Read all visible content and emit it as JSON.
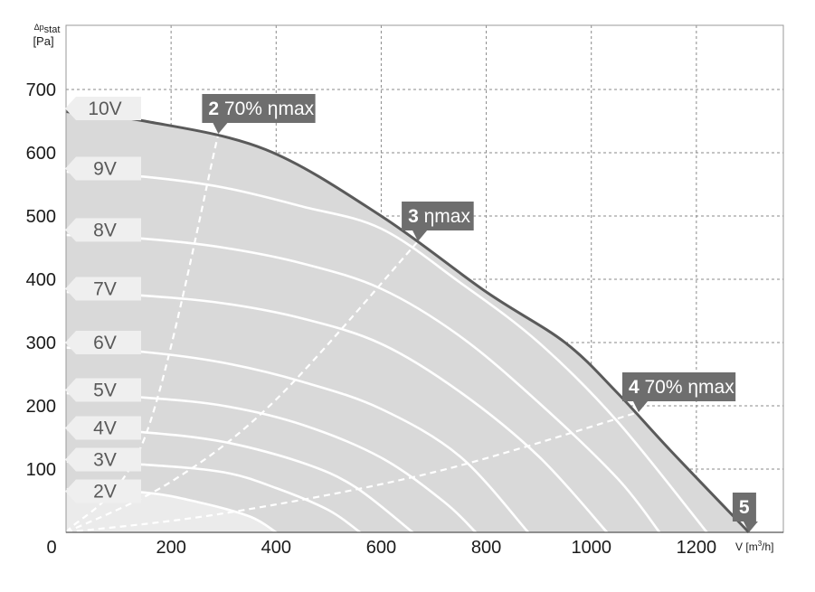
{
  "chart_data": {
    "type": "line",
    "title": "",
    "ylabel": {
      "main": "Δp",
      "sub": "stat",
      "unit": "[Pa]"
    },
    "xlabel": {
      "main": "V",
      "unit_pre": "[m",
      "unit_sup": "3",
      "unit_post": "/h]"
    },
    "xlim": [
      0,
      1400
    ],
    "ylim": [
      0,
      700
    ],
    "x_ticks": [
      {
        "value": 0,
        "label": "0"
      },
      {
        "value": 200,
        "label": "200"
      },
      {
        "value": 400,
        "label": "400"
      },
      {
        "value": 600,
        "label": "600"
      },
      {
        "value": 800,
        "label": "800"
      },
      {
        "value": 1000,
        "label": "1000"
      },
      {
        "value": 1200,
        "label": "1200"
      }
    ],
    "y_ticks": [
      {
        "value": 100,
        "label": "100"
      },
      {
        "value": 200,
        "label": "200"
      },
      {
        "value": 300,
        "label": "300"
      },
      {
        "value": 400,
        "label": "400"
      },
      {
        "value": 500,
        "label": "500"
      },
      {
        "value": 600,
        "label": "600"
      },
      {
        "value": 700,
        "label": "700"
      }
    ],
    "x_grid": [
      0,
      200,
      400,
      600,
      800,
      1000,
      1200
    ],
    "y_grid": [
      100,
      200,
      300,
      400,
      500,
      600,
      700
    ],
    "grid": true,
    "envelope": {
      "name": "10V",
      "points": [
        [
          0,
          665
        ],
        [
          150,
          650
        ],
        [
          380,
          605
        ],
        [
          600,
          500
        ],
        [
          800,
          380
        ],
        [
          950,
          300
        ],
        [
          1050,
          220
        ],
        [
          1150,
          130
        ],
        [
          1300,
          0
        ]
      ]
    },
    "series": [
      {
        "name": "9V",
        "points": [
          [
            0,
            570
          ],
          [
            150,
            562
          ],
          [
            300,
            545
          ],
          [
            450,
            515
          ],
          [
            600,
            480
          ],
          [
            750,
            395
          ],
          [
            900,
            300
          ],
          [
            1050,
            175
          ],
          [
            1220,
            0
          ]
        ]
      },
      {
        "name": "8V",
        "points": [
          [
            0,
            470
          ],
          [
            150,
            464
          ],
          [
            300,
            450
          ],
          [
            450,
            425
          ],
          [
            600,
            385
          ],
          [
            750,
            310
          ],
          [
            900,
            205
          ],
          [
            1050,
            85
          ],
          [
            1130,
            0
          ]
        ]
      },
      {
        "name": "7V",
        "points": [
          [
            0,
            380
          ],
          [
            150,
            374
          ],
          [
            300,
            362
          ],
          [
            450,
            338
          ],
          [
            600,
            298
          ],
          [
            750,
            222
          ],
          [
            900,
            120
          ],
          [
            1030,
            0
          ]
        ]
      },
      {
        "name": "6V",
        "points": [
          [
            0,
            292
          ],
          [
            150,
            285
          ],
          [
            300,
            268
          ],
          [
            450,
            238
          ],
          [
            600,
            195
          ],
          [
            750,
            120
          ],
          [
            880,
            0
          ]
        ]
      },
      {
        "name": "5V",
        "points": [
          [
            0,
            220
          ],
          [
            150,
            213
          ],
          [
            300,
            200
          ],
          [
            450,
            170
          ],
          [
            600,
            118
          ],
          [
            720,
            48
          ],
          [
            780,
            0
          ]
        ]
      },
      {
        "name": "4V",
        "points": [
          [
            0,
            163
          ],
          [
            150,
            158
          ],
          [
            300,
            143
          ],
          [
            450,
            110
          ],
          [
            550,
            72
          ],
          [
            660,
            0
          ]
        ]
      },
      {
        "name": "3V",
        "points": [
          [
            0,
            112
          ],
          [
            150,
            107
          ],
          [
            300,
            95
          ],
          [
            400,
            70
          ],
          [
            500,
            35
          ],
          [
            560,
            0
          ]
        ]
      },
      {
        "name": "2V",
        "points": [
          [
            0,
            68
          ],
          [
            150,
            63
          ],
          [
            250,
            48
          ],
          [
            350,
            25
          ],
          [
            400,
            0
          ]
        ]
      }
    ],
    "efficiency_lines": [
      {
        "points": [
          [
            0,
            0
          ],
          [
            150,
            150
          ],
          [
            290,
            630
          ]
        ]
      },
      {
        "points": [
          [
            0,
            0
          ],
          [
            200,
            80
          ],
          [
            400,
            210
          ],
          [
            670,
            460
          ]
        ]
      },
      {
        "points": [
          [
            0,
            0
          ],
          [
            300,
            30
          ],
          [
            700,
            95
          ],
          [
            1090,
            190
          ]
        ]
      }
    ],
    "voltage_labels": [
      {
        "text": "10V",
        "y": 670
      },
      {
        "text": "9V",
        "y": 575
      },
      {
        "text": "8V",
        "y": 478
      },
      {
        "text": "7V",
        "y": 385
      },
      {
        "text": "6V",
        "y": 300
      },
      {
        "text": "5V",
        "y": 225
      },
      {
        "text": "4V",
        "y": 165
      },
      {
        "text": "3V",
        "y": 115
      },
      {
        "text": "2V",
        "y": 65
      }
    ],
    "points": [
      {
        "number": "2",
        "text": "70% ηmax",
        "x": 290,
        "y": 630
      },
      {
        "number": "3",
        "text": "ηmax",
        "x": 670,
        "y": 460
      },
      {
        "number": "4",
        "text": "70% ηmax",
        "x": 1090,
        "y": 190
      },
      {
        "number": "5",
        "text": "",
        "x": 1300,
        "y": 0
      }
    ],
    "colors": {
      "area": "#d9d9d9",
      "low_area": "#ebebeb",
      "envelope": "#5a5a5a",
      "curve": "#ffffff",
      "grid": "#8a8a8a",
      "label_box": "#6e6e6e",
      "voltage_box": "#efefef",
      "voltage_text": "#595959",
      "axis_text": "#1a1a1a"
    }
  }
}
